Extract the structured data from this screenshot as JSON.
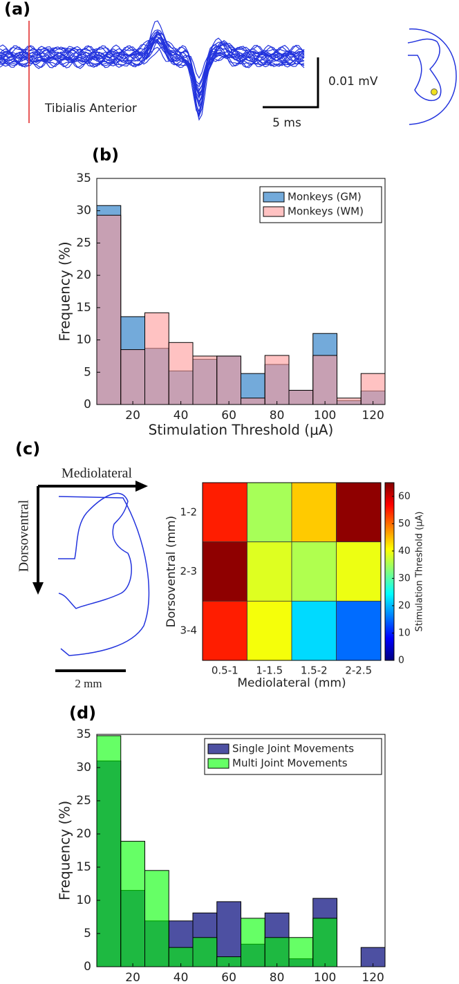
{
  "panel_a": {
    "label": "(a)",
    "muscle": "Tibialis Anterior",
    "voltage_scale": "0.01 mV",
    "time_scale": "5 ms"
  },
  "diagram_c": {
    "horizontal_axis": "Mediolateral",
    "vertical_axis": "Dorsoventral",
    "scale_bar": "2 mm"
  },
  "chart_data": [
    {
      "type": "histogram",
      "panel_label": "(b)",
      "xlabel": "Stimulation Threshold (μA)",
      "ylabel": "Frequency (%)",
      "bins": [
        5,
        15,
        25,
        35,
        45,
        55,
        65,
        75,
        85,
        95,
        105,
        115,
        125
      ],
      "xlim": [
        5,
        125
      ],
      "xticks": [
        20,
        40,
        60,
        80,
        100,
        120
      ],
      "ylim": [
        0,
        35
      ],
      "yticks": [
        0,
        5,
        10,
        15,
        20,
        25,
        30,
        35
      ],
      "legend": "upper right",
      "series": [
        {
          "name": "Monkeys (GM)",
          "color": "#5a9bd4",
          "values": [
            30.8,
            13.6,
            8.7,
            5.2,
            7.0,
            7.5,
            4.8,
            6.2,
            2.2,
            11.0,
            0.6,
            2.1
          ]
        },
        {
          "name": "Monkeys (WM)",
          "color": "#ff9a9a",
          "values": [
            29.3,
            8.5,
            14.2,
            9.6,
            7.5,
            7.5,
            1.0,
            7.6,
            2.2,
            7.6,
            1.0,
            4.8
          ]
        }
      ]
    },
    {
      "type": "heatmap",
      "panel_label": "(c)",
      "xlabel": "Mediolateral (mm)",
      "ylabel": "Dorsoventral (mm)",
      "categories": [
        "0.5-1",
        "1-1.5",
        "1.5-2",
        "2-2.5"
      ],
      "rows": [
        "1-2",
        "2-3",
        "3-4"
      ],
      "values": [
        [
          55,
          35,
          44,
          64
        ],
        [
          64,
          38.5,
          35.6,
          39.5
        ],
        [
          55,
          40,
          22,
          15
        ]
      ],
      "colormap": "jet",
      "clim": [
        0,
        65
      ],
      "cticks": [
        0,
        10,
        20,
        30,
        40,
        50,
        60
      ],
      "colorbar_label": "Stimulation Threshold (μA)"
    },
    {
      "type": "histogram",
      "panel_label": "(d)",
      "xlabel": "Stimulation Threshold (μA)",
      "ylabel": "Frequency (%)",
      "bins": [
        5,
        15,
        25,
        35,
        45,
        55,
        65,
        75,
        85,
        95,
        105,
        115,
        125
      ],
      "xlim": [
        5,
        125
      ],
      "xticks": [
        20,
        40,
        60,
        80,
        100,
        120
      ],
      "ylim": [
        0,
        35
      ],
      "yticks": [
        0,
        5,
        10,
        15,
        20,
        25,
        30,
        35
      ],
      "legend": "upper right",
      "series": [
        {
          "name": "Single Joint Movements",
          "color": "#2e3192",
          "values": [
            31.0,
            11.5,
            6.9,
            6.9,
            8.1,
            9.8,
            3.4,
            8.1,
            1.2,
            10.3,
            0,
            2.9
          ]
        },
        {
          "name": "Multi Joint Movements",
          "color": "#00ff00",
          "values": [
            34.8,
            18.9,
            14.5,
            2.9,
            4.4,
            1.5,
            7.3,
            4.4,
            4.4,
            7.3,
            0,
            0
          ]
        }
      ]
    }
  ]
}
